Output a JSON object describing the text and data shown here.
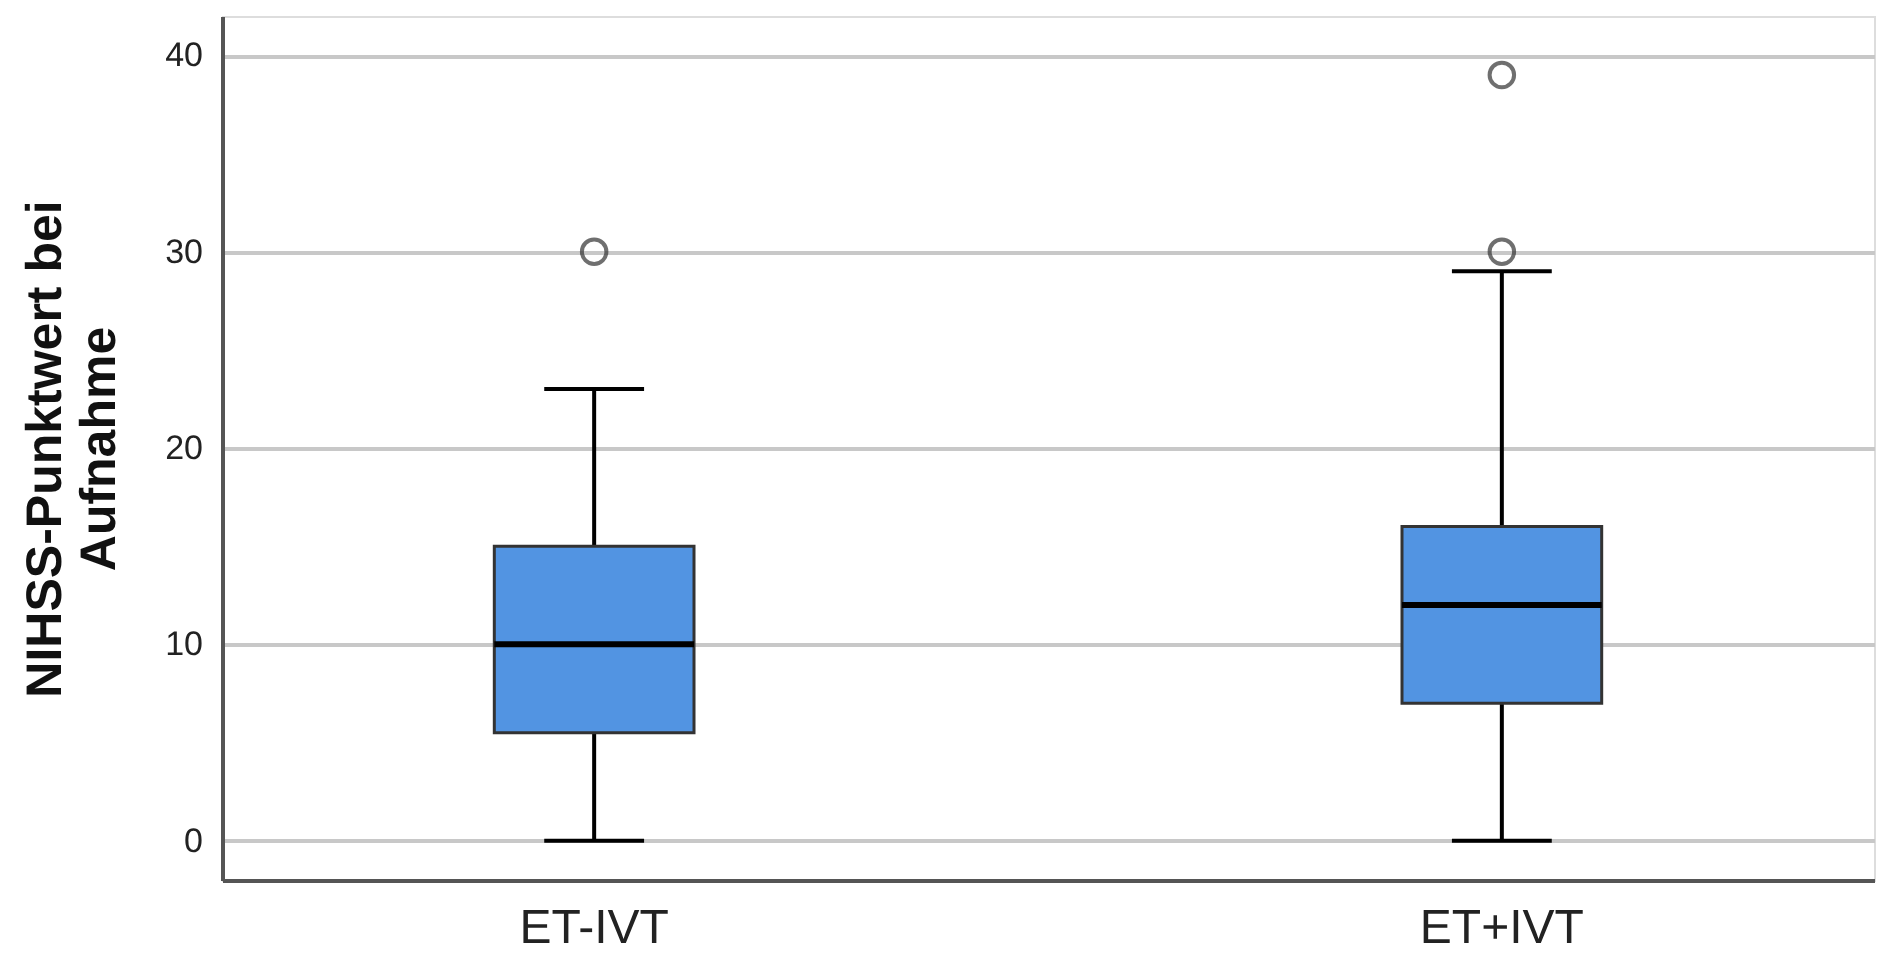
{
  "chart_data": {
    "type": "box",
    "ylabel": "NIHSS-Punktwert bei Aufnahme",
    "categories": [
      "ET-IVT",
      "ET+IVT"
    ],
    "boxes": [
      {
        "low": 0,
        "q1": 5.5,
        "median": 10,
        "q3": 15,
        "high": 23,
        "outliers": [
          30
        ]
      },
      {
        "low": 0,
        "q1": 7,
        "median": 12,
        "q3": 16,
        "high": 29,
        "outliers": [
          30,
          39
        ]
      }
    ],
    "color": "#5294e2",
    "ylim": [
      -2,
      42
    ],
    "yticks": [
      0,
      10,
      20,
      30,
      40
    ],
    "grid": "y"
  }
}
